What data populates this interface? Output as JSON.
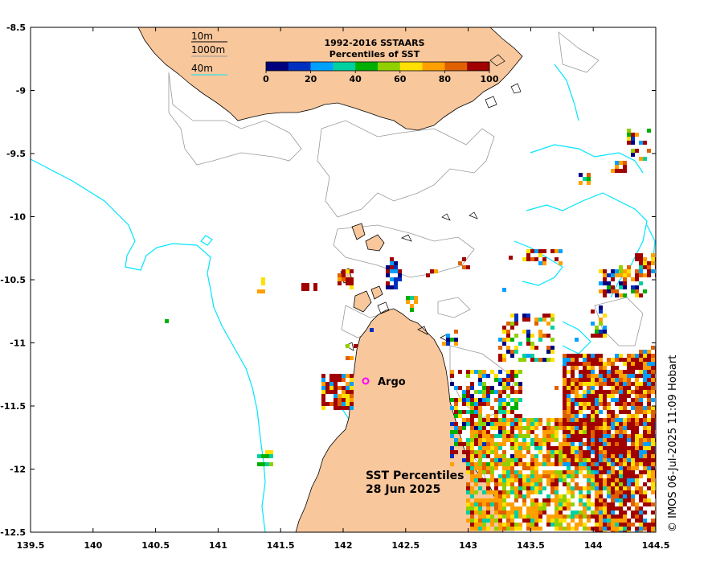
{
  "map": {
    "lon_ticks": [
      "139.5",
      "140",
      "140.5",
      "141",
      "141.5",
      "142",
      "142.5",
      "143",
      "143.5",
      "144",
      "144.5"
    ],
    "lat_ticks": [
      "-8.5",
      "-9",
      "-9.5",
      "-10",
      "-10.5",
      "-11",
      "-11.5",
      "-12",
      "-12.5"
    ],
    "lon_range": [
      139.5,
      144.5
    ],
    "lat_range": [
      -12.5,
      -8.5
    ],
    "land_color": "#f8c79c",
    "isobath_40_color": "#00e5ff",
    "contour_color": "#999999"
  },
  "depth_legend": {
    "items": [
      {
        "label": "10m",
        "color": "#000000"
      },
      {
        "label": "1000m",
        "color": "#999999"
      },
      {
        "label": "40m",
        "color": "#00e5ff"
      }
    ]
  },
  "colorbar": {
    "title_line1": "1992-2016 SSTAARS",
    "title_line2": "Percentiles of SST",
    "ticks": [
      "0",
      "20",
      "40",
      "60",
      "80",
      "100"
    ],
    "colors": [
      "#00007f",
      "#0030c0",
      "#00a0ff",
      "#00d0a0",
      "#00b000",
      "#90d000",
      "#ffe000",
      "#ffa000",
      "#e06000",
      "#a00000"
    ]
  },
  "argo": {
    "label": "Argo",
    "lon": 142.2,
    "lat": -11.3,
    "color": "#ff00ff"
  },
  "headline": {
    "line1": "SST Percentiles",
    "line2": "28 Jun 2025"
  },
  "credit": "© IMOS 06-Jul-2025 11:09 Hobart"
}
